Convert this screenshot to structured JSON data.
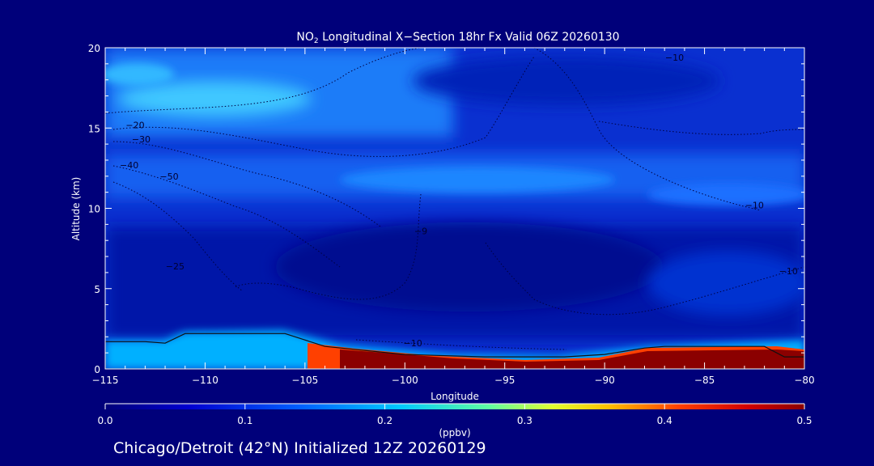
{
  "chart_data": {
    "type": "heatmap",
    "title_prefix": "NO",
    "title_sub": "2",
    "title_rest": " Longitudinal X−Section 18hr  Fx Valid 06Z 20260130",
    "xlabel": "Longitude",
    "ylabel": "Altitude (km)",
    "xlim": [
      -115,
      -80
    ],
    "ylim": [
      0,
      20
    ],
    "xticks": [
      -115,
      -110,
      -105,
      -100,
      -95,
      -90,
      -85,
      -80
    ],
    "xtick_labels": [
      "−115",
      "−110",
      "−105",
      "−100",
      "−95",
      "−90",
      "−85",
      "−80"
    ],
    "yticks": [
      0,
      5,
      10,
      15,
      20
    ],
    "ytick_labels": [
      "0",
      "5",
      "10",
      "15",
      "20"
    ],
    "colorbar": {
      "label": "(ppbv)",
      "ticks": [
        0.0,
        0.1,
        0.2,
        0.3,
        0.4,
        0.5
      ],
      "tick_labels": [
        "0.0",
        "0.1",
        "0.2",
        "0.3",
        "0.4",
        "0.5"
      ],
      "colors": [
        "#00007a",
        "#0000c8",
        "#0040ff",
        "#00b0ff",
        "#40ffc0",
        "#d0ff40",
        "#ffd000",
        "#ff5000",
        "#d00000",
        "#8b0000"
      ]
    },
    "terrain_profile": {
      "lon": [
        -115,
        -113,
        -112,
        -111,
        -106,
        -104,
        -100,
        -96,
        -92,
        -90,
        -88,
        -87,
        -82,
        -81,
        -80
      ],
      "alt_km": [
        1.7,
        1.7,
        1.6,
        2.2,
        2.2,
        1.4,
        0.9,
        0.75,
        0.75,
        0.9,
        1.3,
        1.4,
        1.4,
        0.75,
        0.75
      ]
    },
    "contour_labels": [
      {
        "text": "−10",
        "lon": -86.5,
        "alt": 19.2
      },
      {
        "text": "−20",
        "lon": -113.5,
        "alt": 15.0
      },
      {
        "text": "−30",
        "lon": -113.2,
        "alt": 14.1
      },
      {
        "text": "−40",
        "lon": -113.8,
        "alt": 12.5
      },
      {
        "text": "−50",
        "lon": -111.8,
        "alt": 11.8
      },
      {
        "text": "−10",
        "lon": -82.5,
        "alt": 10.0
      },
      {
        "text": "−9",
        "lon": -99.2,
        "alt": 8.4
      },
      {
        "text": "−25",
        "lon": -111.5,
        "alt": 6.2
      },
      {
        "text": "−10",
        "lon": -80.8,
        "alt": 5.9
      },
      {
        "text": "−10",
        "lon": -99.6,
        "alt": 1.4
      }
    ]
  },
  "footer": {
    "caption": "Chicago/Detroit (42°N) Initialized 12Z 20260129"
  }
}
